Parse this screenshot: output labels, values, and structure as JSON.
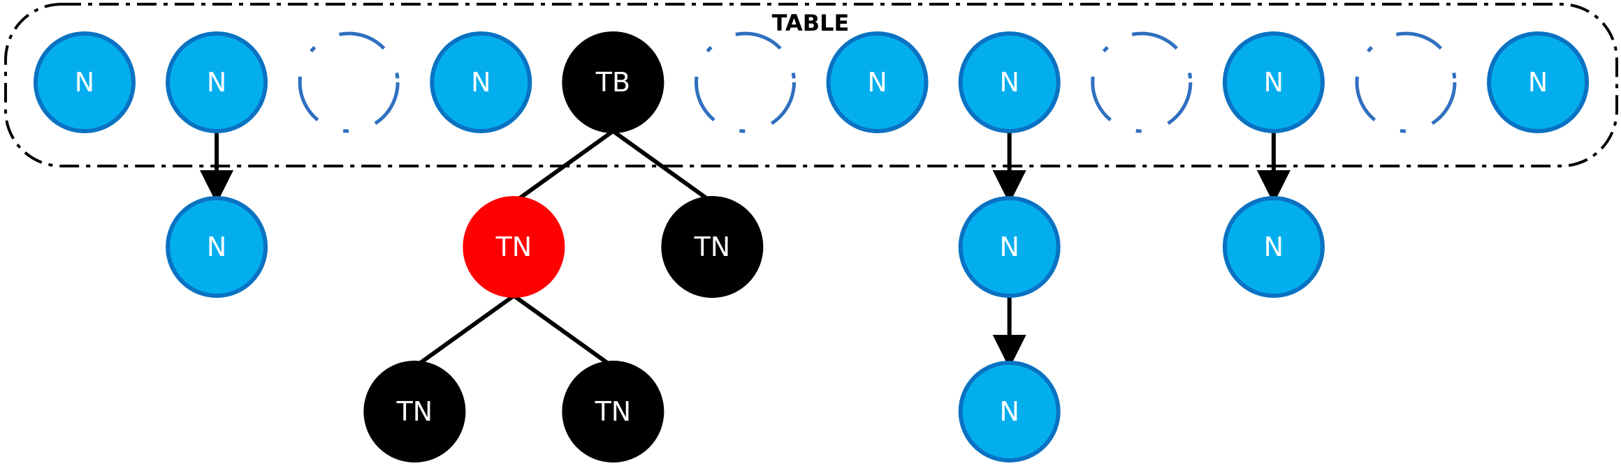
{
  "diagram": {
    "title": "TABLE",
    "colors": {
      "list_node_fill": "#03aeef",
      "list_node_stroke": "#0a72c2",
      "tree_black": "#000000",
      "tree_red": "#ff0000",
      "empty_slot_stroke": "#2f6fbf",
      "edge": "#000000"
    },
    "slots": [
      {
        "kind": "list-node",
        "label": "N"
      },
      {
        "kind": "list-node",
        "label": "N"
      },
      {
        "kind": "empty"
      },
      {
        "kind": "list-node",
        "label": "N"
      },
      {
        "kind": "tree-bin",
        "label": "TB"
      },
      {
        "kind": "empty"
      },
      {
        "kind": "list-node",
        "label": "N"
      },
      {
        "kind": "list-node",
        "label": "N"
      },
      {
        "kind": "empty"
      },
      {
        "kind": "list-node",
        "label": "N"
      },
      {
        "kind": "empty"
      },
      {
        "kind": "list-node",
        "label": "N"
      }
    ],
    "chains": [
      {
        "slot": 1,
        "nodes": [
          {
            "label": "N"
          }
        ]
      },
      {
        "slot": 7,
        "nodes": [
          {
            "label": "N"
          },
          {
            "label": "N"
          }
        ]
      },
      {
        "slot": 9,
        "nodes": [
          {
            "label": "N"
          }
        ]
      }
    ],
    "tree": {
      "slot": 4,
      "children": [
        {
          "label": "TN",
          "color": "red",
          "children": [
            {
              "label": "TN",
              "color": "black"
            },
            {
              "label": "TN",
              "color": "black"
            }
          ]
        },
        {
          "label": "TN",
          "color": "black"
        }
      ]
    }
  }
}
